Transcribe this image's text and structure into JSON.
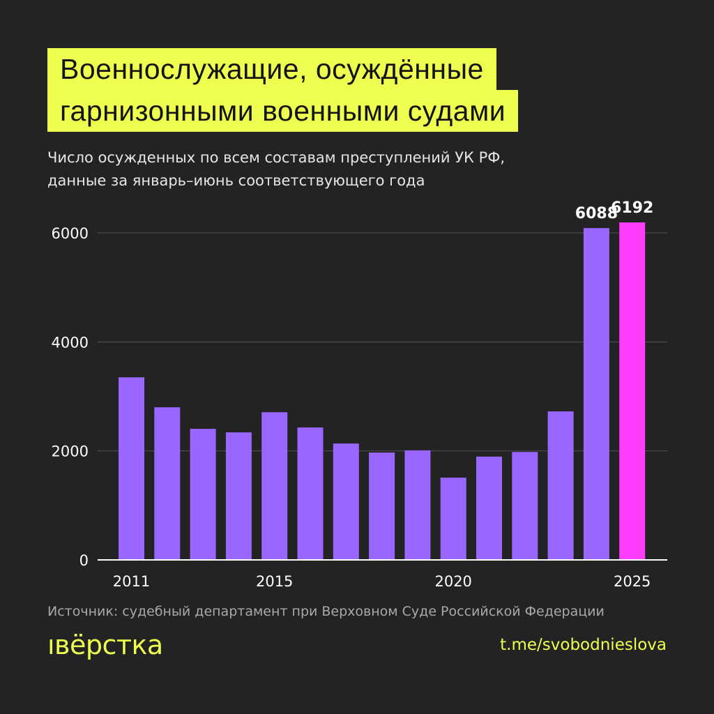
{
  "header": {
    "title_line1": "Военнослужащие, осуждённые",
    "title_line2": "гарнизонными военными судами",
    "subtitle_line1": "Число осужденных по всем составам преступлений УК РФ,",
    "subtitle_line2": "данные за январь–июнь соответствующего года"
  },
  "footer": {
    "source": "Источник: судебный департамент при Верховном Суде Российской Федерации",
    "logo": "IВЁРСТКА",
    "link": "t.me/svobodnieslova"
  },
  "colors": {
    "background": "#232323",
    "title_bg": "#eeff4f",
    "bar": "#9966ff",
    "highlight_bar": "#ff3dff"
  },
  "chart_data": {
    "type": "bar",
    "categories": [
      "2011",
      "2012",
      "2013",
      "2014",
      "2015",
      "2016",
      "2017",
      "2018",
      "2019",
      "2020",
      "2021",
      "2022",
      "2023",
      "2024",
      "2025"
    ],
    "values": [
      3350,
      2800,
      2405,
      2340,
      2710,
      2430,
      2135,
      1970,
      2010,
      1510,
      1895,
      1980,
      2725,
      6088,
      6192
    ],
    "data_labels": {
      "2024": "6088",
      "2025": "6192"
    },
    "highlight": "2025",
    "xticks": [
      "2011",
      "2015",
      "2020",
      "2025"
    ],
    "yticks": [
      0,
      2000,
      4000,
      6000
    ],
    "ylim": [
      0,
      6000
    ],
    "grid": true
  }
}
